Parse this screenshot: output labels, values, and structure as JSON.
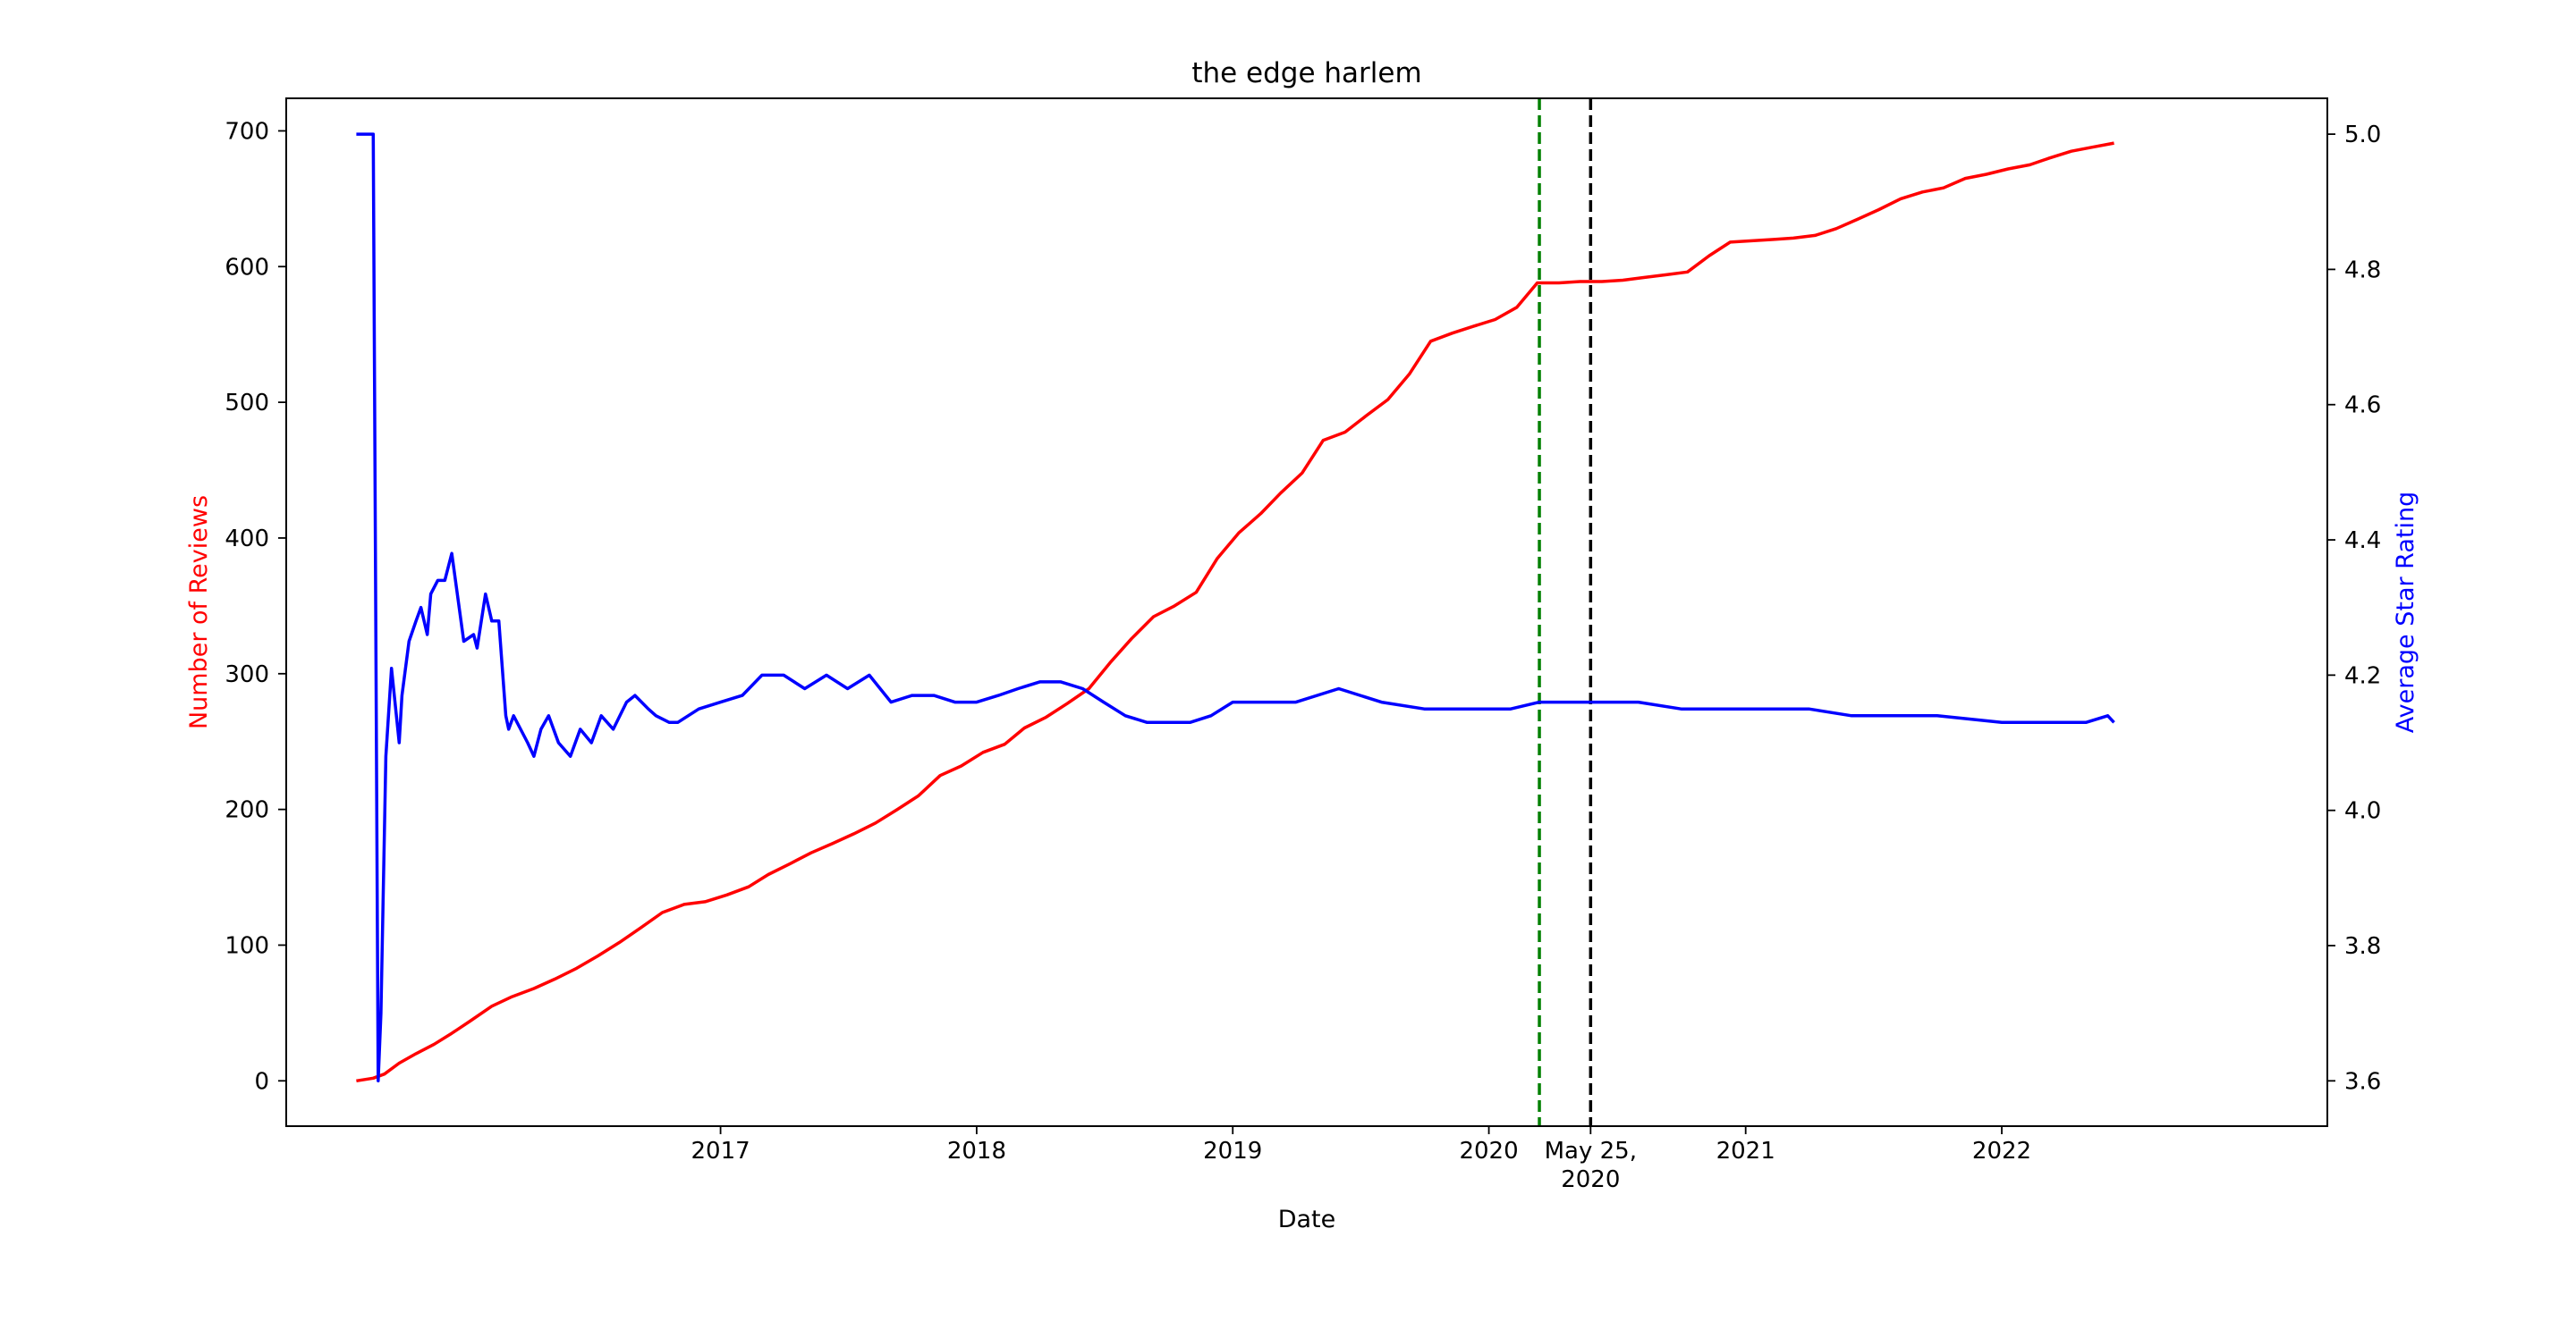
{
  "chart_data": {
    "type": "line",
    "title": "the edge harlem",
    "xlabel": "Date",
    "ylabel_left": "Number of Reviews",
    "ylabel_right": "Average Star Rating",
    "xlim": [
      "2015-04-23",
      "2023-04-10"
    ],
    "ylim_left": [
      -33.4,
      724.0
    ],
    "ylim_right": [
      3.533,
      5.053
    ],
    "x_ticks": [
      {
        "date": "2017-01-01",
        "label": "2017"
      },
      {
        "date": "2018-01-01",
        "label": "2018"
      },
      {
        "date": "2019-01-01",
        "label": "2019"
      },
      {
        "date": "2020-01-01",
        "label": "2020"
      },
      {
        "date": "2020-05-25",
        "label": "May 25,",
        "label2": "2020"
      },
      {
        "date": "2021-01-01",
        "label": "2021"
      },
      {
        "date": "2022-01-01",
        "label": "2022"
      }
    ],
    "y_ticks_left": [
      0,
      100,
      200,
      300,
      400,
      500,
      600,
      700
    ],
    "y_ticks_right": [
      "3.6",
      "3.8",
      "4.0",
      "4.2",
      "4.4",
      "4.6",
      "4.8",
      "5.0"
    ],
    "vlines": [
      {
        "date": "2020-03-13",
        "color": "#008000",
        "style": "dashed"
      },
      {
        "date": "2020-05-25",
        "color": "#000000",
        "style": "dashed"
      }
    ],
    "grid": false,
    "series": [
      {
        "axis": "left",
        "color": "#ff0000",
        "x": [
          "2015-08-01",
          "2015-08-25",
          "2015-09-10",
          "2015-10-01",
          "2015-10-25",
          "2015-11-20",
          "2015-12-15",
          "2016-01-10",
          "2016-02-10",
          "2016-03-10",
          "2016-04-10",
          "2016-05-10",
          "2016-06-10",
          "2016-07-10",
          "2016-08-10",
          "2016-09-10",
          "2016-10-10",
          "2016-11-10",
          "2016-12-10",
          "2017-01-10",
          "2017-02-10",
          "2017-03-10",
          "2017-04-10",
          "2017-05-10",
          "2017-06-10",
          "2017-07-10",
          "2017-08-10",
          "2017-09-10",
          "2017-10-10",
          "2017-11-10",
          "2017-12-10",
          "2018-01-10",
          "2018-02-10",
          "2018-03-10",
          "2018-04-10",
          "2018-05-10",
          "2018-06-10",
          "2018-07-10",
          "2018-08-10",
          "2018-09-10",
          "2018-10-10",
          "2018-11-10",
          "2018-12-10",
          "2019-01-10",
          "2019-02-10",
          "2019-03-10",
          "2019-04-10",
          "2019-05-10",
          "2019-06-10",
          "2019-07-10",
          "2019-08-10",
          "2019-09-10",
          "2019-10-10",
          "2019-11-10",
          "2019-12-10",
          "2020-01-10",
          "2020-02-10",
          "2020-03-10",
          "2020-04-10",
          "2020-05-10",
          "2020-06-10",
          "2020-07-10",
          "2020-08-10",
          "2020-09-10",
          "2020-10-10",
          "2020-11-10",
          "2020-12-10",
          "2021-01-10",
          "2021-02-10",
          "2021-03-10",
          "2021-04-10",
          "2021-05-10",
          "2021-06-10",
          "2021-07-10",
          "2021-08-10",
          "2021-09-10",
          "2021-10-10",
          "2021-11-10",
          "2021-12-10",
          "2022-01-10",
          "2022-02-10",
          "2022-03-10",
          "2022-04-10",
          "2022-05-10",
          "2022-06-10"
        ],
        "values": [
          0,
          2,
          5,
          13,
          20,
          27,
          35,
          44,
          55,
          62,
          68,
          75,
          83,
          92,
          102,
          113,
          124,
          130,
          132,
          137,
          143,
          152,
          160,
          168,
          175,
          182,
          190,
          200,
          210,
          225,
          232,
          242,
          248,
          260,
          268,
          278,
          289,
          308,
          326,
          342,
          350,
          360,
          385,
          404,
          418,
          433,
          448,
          472,
          478,
          490,
          502,
          521,
          545,
          551,
          556,
          561,
          570,
          588,
          588,
          589,
          589,
          590,
          592,
          594,
          596,
          608,
          618,
          619,
          620,
          621,
          623,
          628,
          635,
          642,
          650,
          655,
          658,
          665,
          668,
          672,
          675,
          680,
          685,
          688,
          691
        ]
      },
      {
        "axis": "right",
        "color": "#0000ff",
        "x": [
          "2015-08-01",
          "2015-08-25",
          "2015-09-01",
          "2015-09-05",
          "2015-09-12",
          "2015-09-20",
          "2015-10-01",
          "2015-10-05",
          "2015-10-15",
          "2015-10-25",
          "2015-11-01",
          "2015-11-10",
          "2015-11-15",
          "2015-11-25",
          "2015-12-05",
          "2015-12-15",
          "2016-01-01",
          "2016-01-15",
          "2016-01-20",
          "2016-02-01",
          "2016-02-10",
          "2016-02-20",
          "2016-03-01",
          "2016-03-05",
          "2016-03-12",
          "2016-04-01",
          "2016-04-10",
          "2016-04-20",
          "2016-05-01",
          "2016-05-15",
          "2016-06-01",
          "2016-06-15",
          "2016-07-01",
          "2016-07-15",
          "2016-08-01",
          "2016-08-20",
          "2016-09-01",
          "2016-09-20",
          "2016-10-01",
          "2016-10-20",
          "2016-11-01",
          "2016-12-01",
          "2017-01-01",
          "2017-02-01",
          "2017-03-01",
          "2017-04-01",
          "2017-05-01",
          "2017-06-01",
          "2017-07-01",
          "2017-08-01",
          "2017-09-01",
          "2017-10-01",
          "2017-11-01",
          "2017-12-01",
          "2018-01-01",
          "2018-02-01",
          "2018-03-01",
          "2018-04-01",
          "2018-05-01",
          "2018-06-01",
          "2018-07-01",
          "2018-08-01",
          "2018-09-01",
          "2018-10-01",
          "2018-11-01",
          "2018-12-01",
          "2019-01-01",
          "2019-02-01",
          "2019-04-01",
          "2019-06-01",
          "2019-08-01",
          "2019-10-01",
          "2019-12-01",
          "2020-02-01",
          "2020-03-13",
          "2020-05-25",
          "2020-08-01",
          "2020-10-01",
          "2021-01-01",
          "2021-04-01",
          "2021-06-01",
          "2021-08-01",
          "2021-10-01",
          "2022-01-01",
          "2022-03-01",
          "2022-05-01",
          "2022-06-01",
          "2022-06-10"
        ],
        "values": [
          5.0,
          5.0,
          3.6,
          3.7,
          4.08,
          4.21,
          4.1,
          4.17,
          4.25,
          4.28,
          4.3,
          4.26,
          4.32,
          4.34,
          4.34,
          4.38,
          4.25,
          4.26,
          4.24,
          4.32,
          4.28,
          4.28,
          4.14,
          4.12,
          4.14,
          4.1,
          4.08,
          4.12,
          4.14,
          4.1,
          4.08,
          4.12,
          4.1,
          4.14,
          4.12,
          4.16,
          4.17,
          4.15,
          4.14,
          4.13,
          4.13,
          4.15,
          4.16,
          4.17,
          4.2,
          4.2,
          4.18,
          4.2,
          4.18,
          4.2,
          4.16,
          4.17,
          4.17,
          4.16,
          4.16,
          4.17,
          4.18,
          4.19,
          4.19,
          4.18,
          4.16,
          4.14,
          4.13,
          4.13,
          4.13,
          4.14,
          4.16,
          4.16,
          4.16,
          4.18,
          4.16,
          4.15,
          4.15,
          4.15,
          4.16,
          4.16,
          4.16,
          4.15,
          4.15,
          4.15,
          4.14,
          4.14,
          4.14,
          4.13,
          4.13,
          4.13,
          4.14,
          4.13
        ]
      }
    ]
  }
}
